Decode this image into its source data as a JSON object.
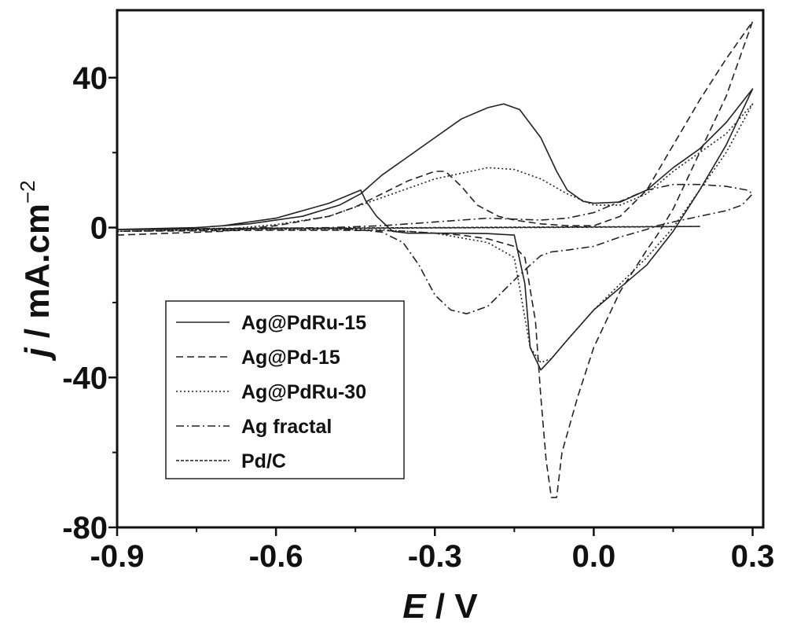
{
  "chart_data": {
    "type": "line",
    "title": "",
    "xlabel": {
      "var": "E",
      "rest": " / V"
    },
    "ylabel": {
      "var": "j",
      "rest": " / mA.cm",
      "sup": "−2"
    },
    "xlim": [
      -0.9,
      0.32
    ],
    "ylim": [
      -80,
      58
    ],
    "xticks": [
      -0.9,
      -0.6,
      -0.3,
      0.0,
      0.3
    ],
    "xtick_labels": [
      "-0.9",
      "-0.6",
      "-0.3",
      "0.0",
      "0.3"
    ],
    "yticks": [
      -80,
      -40,
      0,
      40
    ],
    "ytick_labels": [
      "-80",
      "-40",
      "0",
      "40"
    ],
    "legend_position": "lower-left",
    "grid": false,
    "series": [
      {
        "name": "Ag@PdRu-15",
        "dash": "solid",
        "x": [
          -0.9,
          -0.75,
          -0.65,
          -0.55,
          -0.48,
          -0.44,
          -0.4,
          -0.35,
          -0.3,
          -0.25,
          -0.2,
          -0.17,
          -0.14,
          -0.1,
          -0.07,
          -0.05,
          -0.02,
          0.0,
          0.05,
          0.1,
          0.15,
          0.2,
          0.25,
          0.3,
          0.25,
          0.2,
          0.15,
          0.1,
          0.05,
          0.0,
          -0.05,
          -0.08,
          -0.1,
          -0.12,
          -0.13,
          -0.15,
          -0.2,
          -0.25,
          -0.3,
          -0.35,
          -0.38,
          -0.41,
          -0.43,
          -0.44,
          -0.5,
          -0.6,
          -0.7,
          -0.8,
          -0.9
        ],
        "y": [
          -0.5,
          0.0,
          1.0,
          3.0,
          6.0,
          9.0,
          14.0,
          19.0,
          24.0,
          29.0,
          32.0,
          33.0,
          31.5,
          24.0,
          15.0,
          10.0,
          7.0,
          6.5,
          6.8,
          10.0,
          16.0,
          21.0,
          28.0,
          37.0,
          22.0,
          10.0,
          -1.0,
          -10.0,
          -16.0,
          -22.0,
          -30.0,
          -35.0,
          -38.0,
          -32.0,
          -15.0,
          -2.0,
          -1.6,
          -1.5,
          -1.5,
          -1.5,
          -1.0,
          3.0,
          7.0,
          10.0,
          6.5,
          2.5,
          0.5,
          -0.5,
          -0.5
        ]
      },
      {
        "name": "Ag@Pd-15",
        "dash": "dashed",
        "x": [
          -0.9,
          -0.7,
          -0.6,
          -0.5,
          -0.45,
          -0.4,
          -0.35,
          -0.3,
          -0.28,
          -0.25,
          -0.22,
          -0.18,
          -0.15,
          -0.1,
          -0.05,
          0.0,
          0.05,
          0.1,
          0.15,
          0.2,
          0.25,
          0.3,
          0.25,
          0.2,
          0.15,
          0.12,
          0.1,
          0.05,
          0.0,
          -0.03,
          -0.06,
          -0.07,
          -0.08,
          -0.09,
          -0.1,
          -0.11,
          -0.13,
          -0.15,
          -0.2,
          -0.25,
          -0.3,
          -0.35,
          -0.4,
          -0.5,
          -0.6,
          -0.7,
          -0.9
        ],
        "y": [
          -2.0,
          -1.0,
          0.5,
          3.0,
          5.5,
          9.0,
          12.5,
          15.0,
          15.0,
          11.0,
          6.0,
          3.0,
          2.0,
          1.0,
          0.5,
          0.5,
          3.0,
          10.0,
          22.0,
          34.0,
          45.0,
          55.0,
          35.0,
          20.0,
          5.0,
          -2.0,
          -6.0,
          -17.0,
          -32.0,
          -45.0,
          -60.0,
          -72.0,
          -72.0,
          -62.0,
          -45.0,
          -25.0,
          -8.0,
          -5.0,
          -3.0,
          -2.0,
          -1.5,
          -1.0,
          -0.8,
          -0.7,
          -0.7,
          -0.8,
          -1.0
        ]
      },
      {
        "name": "Ag@PdRu-30",
        "dash": "dotted",
        "x": [
          -0.9,
          -0.7,
          -0.6,
          -0.5,
          -0.4,
          -0.3,
          -0.2,
          -0.15,
          -0.1,
          -0.05,
          0.0,
          0.05,
          0.1,
          0.15,
          0.2,
          0.25,
          0.3,
          0.25,
          0.2,
          0.15,
          0.1,
          0.05,
          0.0,
          -0.05,
          -0.08,
          -0.1,
          -0.12,
          -0.15,
          -0.2,
          -0.3,
          -0.4,
          -0.5,
          -0.6,
          -0.7,
          -0.9
        ],
        "y": [
          -1.0,
          -0.5,
          0.8,
          3.0,
          8.0,
          13.0,
          16.0,
          15.5,
          13.0,
          9.0,
          6.0,
          6.0,
          9.0,
          15.0,
          20.0,
          25.0,
          33.0,
          20.0,
          10.0,
          0.0,
          -8.0,
          -15.0,
          -22.0,
          -30.0,
          -35.0,
          -36.0,
          -32.0,
          -8.0,
          -4.0,
          -1.5,
          -0.6,
          -0.5,
          -0.5,
          -0.6,
          -1.0
        ]
      },
      {
        "name": "Ag fractal",
        "dash": "dashdot",
        "x": [
          -0.9,
          -0.7,
          -0.5,
          -0.4,
          -0.3,
          -0.2,
          -0.1,
          -0.05,
          0.0,
          0.05,
          0.1,
          0.15,
          0.2,
          0.25,
          0.29,
          0.3,
          0.28,
          0.25,
          0.2,
          0.15,
          0.12,
          0.1,
          0.05,
          0.0,
          -0.05,
          -0.08,
          -0.1,
          -0.12,
          -0.15,
          -0.2,
          -0.24,
          -0.27,
          -0.3,
          -0.33,
          -0.36,
          -0.4,
          -0.45,
          -0.5,
          -0.6,
          -0.7,
          -0.9
        ],
        "y": [
          -0.5,
          -0.3,
          0.0,
          0.5,
          1.5,
          2.5,
          2.0,
          2.5,
          4.0,
          7.0,
          10.0,
          11.5,
          11.5,
          11.0,
          10.0,
          9.0,
          6.0,
          4.5,
          3.0,
          1.5,
          0.5,
          -0.5,
          -2.5,
          -5.0,
          -6.0,
          -6.5,
          -7.5,
          -10.0,
          -14.0,
          -21.0,
          -23.0,
          -22.0,
          -18.0,
          -10.0,
          -4.0,
          -1.2,
          -0.5,
          -0.2,
          -0.1,
          -0.2,
          -0.5
        ]
      },
      {
        "name": "Pd/C",
        "dash": "shortdash",
        "x": [
          -0.9,
          -0.6,
          -0.3,
          0.0,
          0.2,
          0.0,
          -0.3,
          -0.6,
          -0.9
        ],
        "y": [
          -0.5,
          -0.2,
          0.0,
          0.2,
          0.3,
          0.1,
          -0.1,
          -0.3,
          -0.5
        ]
      }
    ]
  }
}
